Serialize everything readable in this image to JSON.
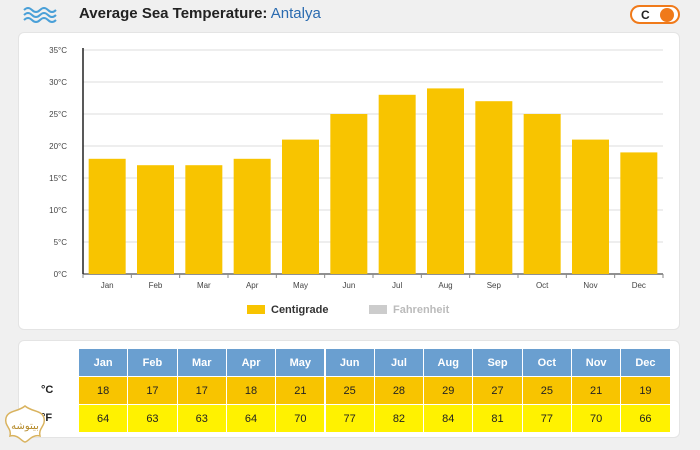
{
  "header": {
    "title_main": "Average Sea Temperature:",
    "title_location": "Antalya",
    "unit_toggle_label": "C"
  },
  "colors": {
    "centigrade": "#f8c400",
    "fahrenheit": "#cccccc",
    "table_header": "#6a9fd0",
    "celsius_row": "#f8c400",
    "fahrenheit_row": "#fff200",
    "accent": "#f07a1a"
  },
  "chart_data": {
    "type": "bar",
    "categories": [
      "Jan",
      "Feb",
      "Mar",
      "Apr",
      "May",
      "Jun",
      "Jul",
      "Aug",
      "Sep",
      "Oct",
      "Nov",
      "Dec"
    ],
    "series": [
      {
        "name": "Centigrade",
        "values": [
          18,
          17,
          17,
          18,
          21,
          25,
          28,
          29,
          27,
          25,
          21,
          19
        ],
        "color": "#f8c400",
        "visible": true
      },
      {
        "name": "Fahrenheit",
        "values": [
          64,
          63,
          63,
          64,
          70,
          77,
          82,
          84,
          81,
          77,
          70,
          66
        ],
        "color": "#cccccc",
        "visible": false
      }
    ],
    "yticks": [
      "0°C",
      "5°C",
      "10°C",
      "15°C",
      "20°C",
      "25°C",
      "30°C",
      "35°C"
    ],
    "ylim": [
      0,
      35
    ],
    "grid": true,
    "legend_position": "bottom-center"
  },
  "table": {
    "months": [
      "Jan",
      "Feb",
      "Mar",
      "Apr",
      "May",
      "Jun",
      "Jul",
      "Aug",
      "Sep",
      "Oct",
      "Nov",
      "Dec"
    ],
    "celsius_label": "°C",
    "fahrenheit_label": "°F",
    "celsius": [
      18,
      17,
      17,
      18,
      21,
      25,
      28,
      29,
      27,
      25,
      21,
      19
    ],
    "fahrenheit": [
      64,
      63,
      63,
      64,
      70,
      77,
      82,
      84,
      81,
      77,
      70,
      66
    ]
  },
  "watermark_text": "بیتوشه"
}
